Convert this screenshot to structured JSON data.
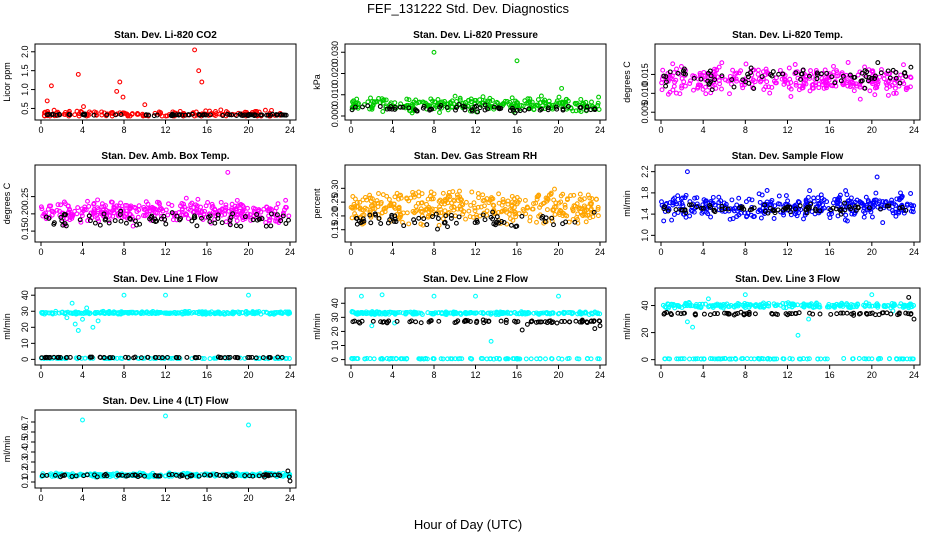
{
  "page": {
    "title": "FEF_131222  Std. Dev. Diagnostics",
    "xlabel": "Hour of Day (UTC)"
  },
  "colors": {
    "black": "#000000",
    "red": "#ff0000",
    "green": "#00cc00",
    "magenta": "#ff00ff",
    "orange": "#ffa500",
    "blue": "#0000ff",
    "cyan": "#00ffff"
  },
  "chart_data": [
    {
      "type": "scatter",
      "title": "Stan. Dev. Li-820 CO2",
      "ylabel": "Licor ppm",
      "xlim": [
        0,
        24
      ],
      "ylim": [
        0.3,
        2.1
      ],
      "xticks": [
        0,
        4,
        8,
        12,
        16,
        20,
        24
      ],
      "yticks": [
        {
          "v": 0.5,
          "t": "0.5"
        },
        {
          "v": 1.0,
          "t": "1.0"
        },
        {
          "v": 1.5,
          "t": "1.5"
        },
        {
          "v": 2.0,
          "t": "2.0"
        }
      ],
      "series": [
        {
          "color": "red",
          "base": 0.35,
          "spread": 0.12,
          "n": 170,
          "outliers": [
            [
              0.6,
              0.7
            ],
            [
              1.0,
              1.1
            ],
            [
              3.6,
              1.4
            ],
            [
              4.1,
              0.55
            ],
            [
              7.3,
              0.95
            ],
            [
              7.6,
              1.2
            ],
            [
              7.9,
              0.8
            ],
            [
              14.8,
              2.05
            ],
            [
              15.2,
              1.5
            ],
            [
              15.5,
              1.2
            ],
            [
              10.0,
              0.6
            ]
          ]
        },
        {
          "color": "black",
          "base": 0.33,
          "spread": 0.03,
          "n": 75,
          "outliers": []
        }
      ]
    },
    {
      "type": "scatter",
      "title": "Stan. Dev. Li-820 Pressure",
      "ylabel": "kPa",
      "xlim": [
        0,
        24
      ],
      "ylim": [
        0.0,
        0.032
      ],
      "xticks": [
        0,
        4,
        8,
        12,
        16,
        20,
        24
      ],
      "yticks": [
        {
          "v": 0.0,
          "t": "0.000"
        },
        {
          "v": 0.01,
          "t": "0.010"
        },
        {
          "v": 0.02,
          "t": "0.020"
        },
        {
          "v": 0.03,
          "t": "0.030"
        }
      ],
      "series": [
        {
          "color": "green",
          "base": 0.0055,
          "spread": 0.0045,
          "n": 280,
          "outliers": [
            [
              8.0,
              0.03
            ],
            [
              16.0,
              0.026
            ],
            [
              20.3,
              0.013
            ]
          ]
        },
        {
          "color": "black",
          "base": 0.0035,
          "spread": 0.0025,
          "n": 70,
          "outliers": []
        }
      ]
    },
    {
      "type": "scatter",
      "title": "Stan. Dev. Li-820 Temp.",
      "ylabel": "degrees C",
      "xlim": [
        0,
        24
      ],
      "ylim": [
        0.004,
        0.022
      ],
      "xticks": [
        0,
        4,
        8,
        12,
        16,
        20,
        24
      ],
      "yticks": [
        {
          "v": 0.005,
          "t": "0.005"
        },
        {
          "v": 0.01,
          "t": "0.010"
        },
        {
          "v": 0.015,
          "t": "0.015"
        }
      ],
      "series": [
        {
          "color": "magenta",
          "base": 0.0135,
          "spread": 0.0055,
          "n": 320,
          "outliers": []
        },
        {
          "color": "black",
          "base": 0.0145,
          "spread": 0.0045,
          "n": 80,
          "outliers": []
        }
      ]
    },
    {
      "type": "scatter",
      "title": "Stan. Dev. Amb. Box Temp.",
      "ylabel": "degrees C",
      "xlim": [
        0,
        24
      ],
      "ylim": [
        0.13,
        0.33
      ],
      "xticks": [
        0,
        4,
        8,
        12,
        16,
        20,
        24
      ],
      "yticks": [
        {
          "v": 0.15,
          "t": "0.15"
        },
        {
          "v": 0.2,
          "t": "0.20"
        },
        {
          "v": 0.25,
          "t": "0.25"
        }
      ],
      "series": [
        {
          "color": "magenta",
          "base": 0.205,
          "spread": 0.045,
          "n": 330,
          "outliers": [
            [
              18.0,
              0.32
            ]
          ]
        },
        {
          "color": "black",
          "base": 0.185,
          "spread": 0.03,
          "n": 80,
          "outliers": []
        }
      ]
    },
    {
      "type": "scatter",
      "title": "Stan. Dev. Gas Stream RH",
      "ylabel": "percent",
      "xlim": [
        0,
        24
      ],
      "ylim": [
        0.12,
        0.37
      ],
      "xticks": [
        0,
        4,
        8,
        12,
        16,
        20,
        24
      ],
      "yticks": [
        {
          "v": 0.15,
          "t": "0.15"
        },
        {
          "v": 0.2,
          "t": "0.20"
        },
        {
          "v": 0.25,
          "t": "0.25"
        },
        {
          "v": 0.3,
          "t": "0.30"
        }
      ],
      "series": [
        {
          "color": "orange",
          "base": 0.235,
          "spread": 0.085,
          "n": 380,
          "outliers": []
        },
        {
          "color": "black",
          "base": 0.185,
          "spread": 0.04,
          "n": 70,
          "outliers": []
        }
      ]
    },
    {
      "type": "scatter",
      "title": "Stan. Dev. Sample Flow",
      "ylabel": "ml/min",
      "xlim": [
        0,
        24
      ],
      "ylim": [
        0.95,
        2.25
      ],
      "xticks": [
        0,
        4,
        8,
        12,
        16,
        20,
        24
      ],
      "yticks": [
        {
          "v": 1.0,
          "t": "1.0"
        },
        {
          "v": 1.4,
          "t": "1.4"
        },
        {
          "v": 1.8,
          "t": "1.8"
        },
        {
          "v": 2.2,
          "t": "2.2"
        }
      ],
      "series": [
        {
          "color": "blue",
          "base": 1.55,
          "spread": 0.35,
          "n": 340,
          "outliers": [
            [
              2.5,
              2.2
            ],
            [
              20.5,
              2.1
            ]
          ]
        },
        {
          "color": "black",
          "base": 1.5,
          "spread": 0.15,
          "n": 80,
          "outliers": []
        }
      ]
    },
    {
      "type": "scatter",
      "title": "Stan. Dev. Line 1 Flow",
      "ylabel": "ml/min",
      "xlim": [
        0,
        24
      ],
      "ylim": [
        -1,
        42
      ],
      "xticks": [
        0,
        4,
        8,
        12,
        16,
        20,
        24
      ],
      "yticks": [
        {
          "v": 0,
          "t": "0"
        },
        {
          "v": 10,
          "t": "10"
        },
        {
          "v": 20,
          "t": "20"
        },
        {
          "v": 30,
          "t": "30"
        },
        {
          "v": 40,
          "t": "40"
        }
      ],
      "series": [
        {
          "color": "cyan",
          "base": 29,
          "spread": 1.2,
          "n": 260,
          "outliers": [
            [
              3.0,
              35
            ],
            [
              3.3,
              22
            ],
            [
              3.6,
              18
            ],
            [
              4.0,
              25
            ],
            [
              4.4,
              32
            ],
            [
              5.0,
              20
            ],
            [
              5.5,
              24
            ],
            [
              6.0,
              30
            ],
            [
              8.0,
              40
            ],
            [
              12.0,
              40
            ],
            [
              20.0,
              40
            ],
            [
              2.5,
              26
            ]
          ]
        },
        {
          "color": "cyan",
          "base": 0.6,
          "spread": 0.3,
          "n": 80,
          "outliers": []
        },
        {
          "color": "black",
          "base": 1.2,
          "spread": 0.3,
          "n": 70,
          "outliers": []
        }
      ]
    },
    {
      "type": "scatter",
      "title": "Stan. Dev. Line 2 Flow",
      "ylabel": "ml/min",
      "xlim": [
        0,
        24
      ],
      "ylim": [
        -1,
        48
      ],
      "xticks": [
        0,
        4,
        8,
        12,
        16,
        20,
        24
      ],
      "yticks": [
        {
          "v": 0,
          "t": "0"
        },
        {
          "v": 10,
          "t": "10"
        },
        {
          "v": 20,
          "t": "20"
        },
        {
          "v": 30,
          "t": "30"
        },
        {
          "v": 40,
          "t": "40"
        }
      ],
      "series": [
        {
          "color": "cyan",
          "base": 33,
          "spread": 1.5,
          "n": 240,
          "outliers": [
            [
              2.0,
              24
            ],
            [
              3.0,
              46
            ],
            [
              1.0,
              45
            ],
            [
              4.2,
              26
            ],
            [
              8.0,
              45
            ],
            [
              12.0,
              45
            ],
            [
              13.5,
              13
            ],
            [
              20.0,
              45
            ],
            [
              2.5,
              34
            ]
          ]
        },
        {
          "color": "cyan",
          "base": 0.6,
          "spread": 0.4,
          "n": 90,
          "outliers": []
        },
        {
          "color": "black",
          "base": 27,
          "spread": 1.5,
          "n": 75,
          "outliers": [
            [
              16.5,
              21
            ],
            [
              17.0,
              25
            ],
            [
              24.0,
              24
            ],
            [
              23.5,
              22
            ]
          ]
        }
      ]
    },
    {
      "type": "scatter",
      "title": "Stan. Dev. Line 3 Flow",
      "ylabel": "ml/min",
      "xlim": [
        0,
        24
      ],
      "ylim": [
        -1,
        50
      ],
      "xticks": [
        0,
        4,
        8,
        12,
        16,
        20,
        24
      ],
      "yticks": [
        {
          "v": 0,
          "t": "0"
        },
        {
          "v": 20,
          "t": "20"
        },
        {
          "v": 40,
          "t": "40"
        }
      ],
      "series": [
        {
          "color": "cyan",
          "base": 40,
          "spread": 2.5,
          "n": 240,
          "outliers": [
            [
              2.5,
              28
            ],
            [
              3.0,
              24
            ],
            [
              4.5,
              45
            ],
            [
              8.0,
              48
            ],
            [
              13.0,
              18
            ],
            [
              14.0,
              30
            ],
            [
              20.0,
              48
            ],
            [
              22.0,
              36
            ]
          ]
        },
        {
          "color": "cyan",
          "base": 0.6,
          "spread": 0.4,
          "n": 90,
          "outliers": []
        },
        {
          "color": "black",
          "base": 34,
          "spread": 1.5,
          "n": 75,
          "outliers": [
            [
              23.5,
              46
            ],
            [
              24.0,
              30
            ]
          ]
        }
      ]
    },
    {
      "type": "scatter",
      "title": "Stan. Dev. Line 4 (LT) Flow",
      "ylabel": "ml/min",
      "xlim": [
        0,
        24
      ],
      "ylim": [
        0.08,
        0.78
      ],
      "xticks": [
        0,
        4,
        8,
        12,
        16,
        20,
        24
      ],
      "yticks": [
        {
          "v": 0.1,
          "t": "0.1"
        },
        {
          "v": 0.2,
          "t": "0.2"
        },
        {
          "v": 0.3,
          "t": "0.3"
        },
        {
          "v": 0.4,
          "t": "0.4"
        },
        {
          "v": 0.5,
          "t": "0.5"
        },
        {
          "v": 0.6,
          "t": "0.6"
        },
        {
          "v": 0.7,
          "t": "0.7"
        }
      ],
      "series": [
        {
          "color": "cyan",
          "base": 0.17,
          "spread": 0.025,
          "n": 280,
          "outliers": [
            [
              4.0,
              0.72
            ],
            [
              12.0,
              0.76
            ],
            [
              20.0,
              0.67
            ]
          ]
        },
        {
          "color": "black",
          "base": 0.165,
          "spread": 0.02,
          "n": 70,
          "outliers": [
            [
              24.0,
              0.11
            ],
            [
              23.8,
              0.21
            ]
          ]
        }
      ]
    }
  ]
}
